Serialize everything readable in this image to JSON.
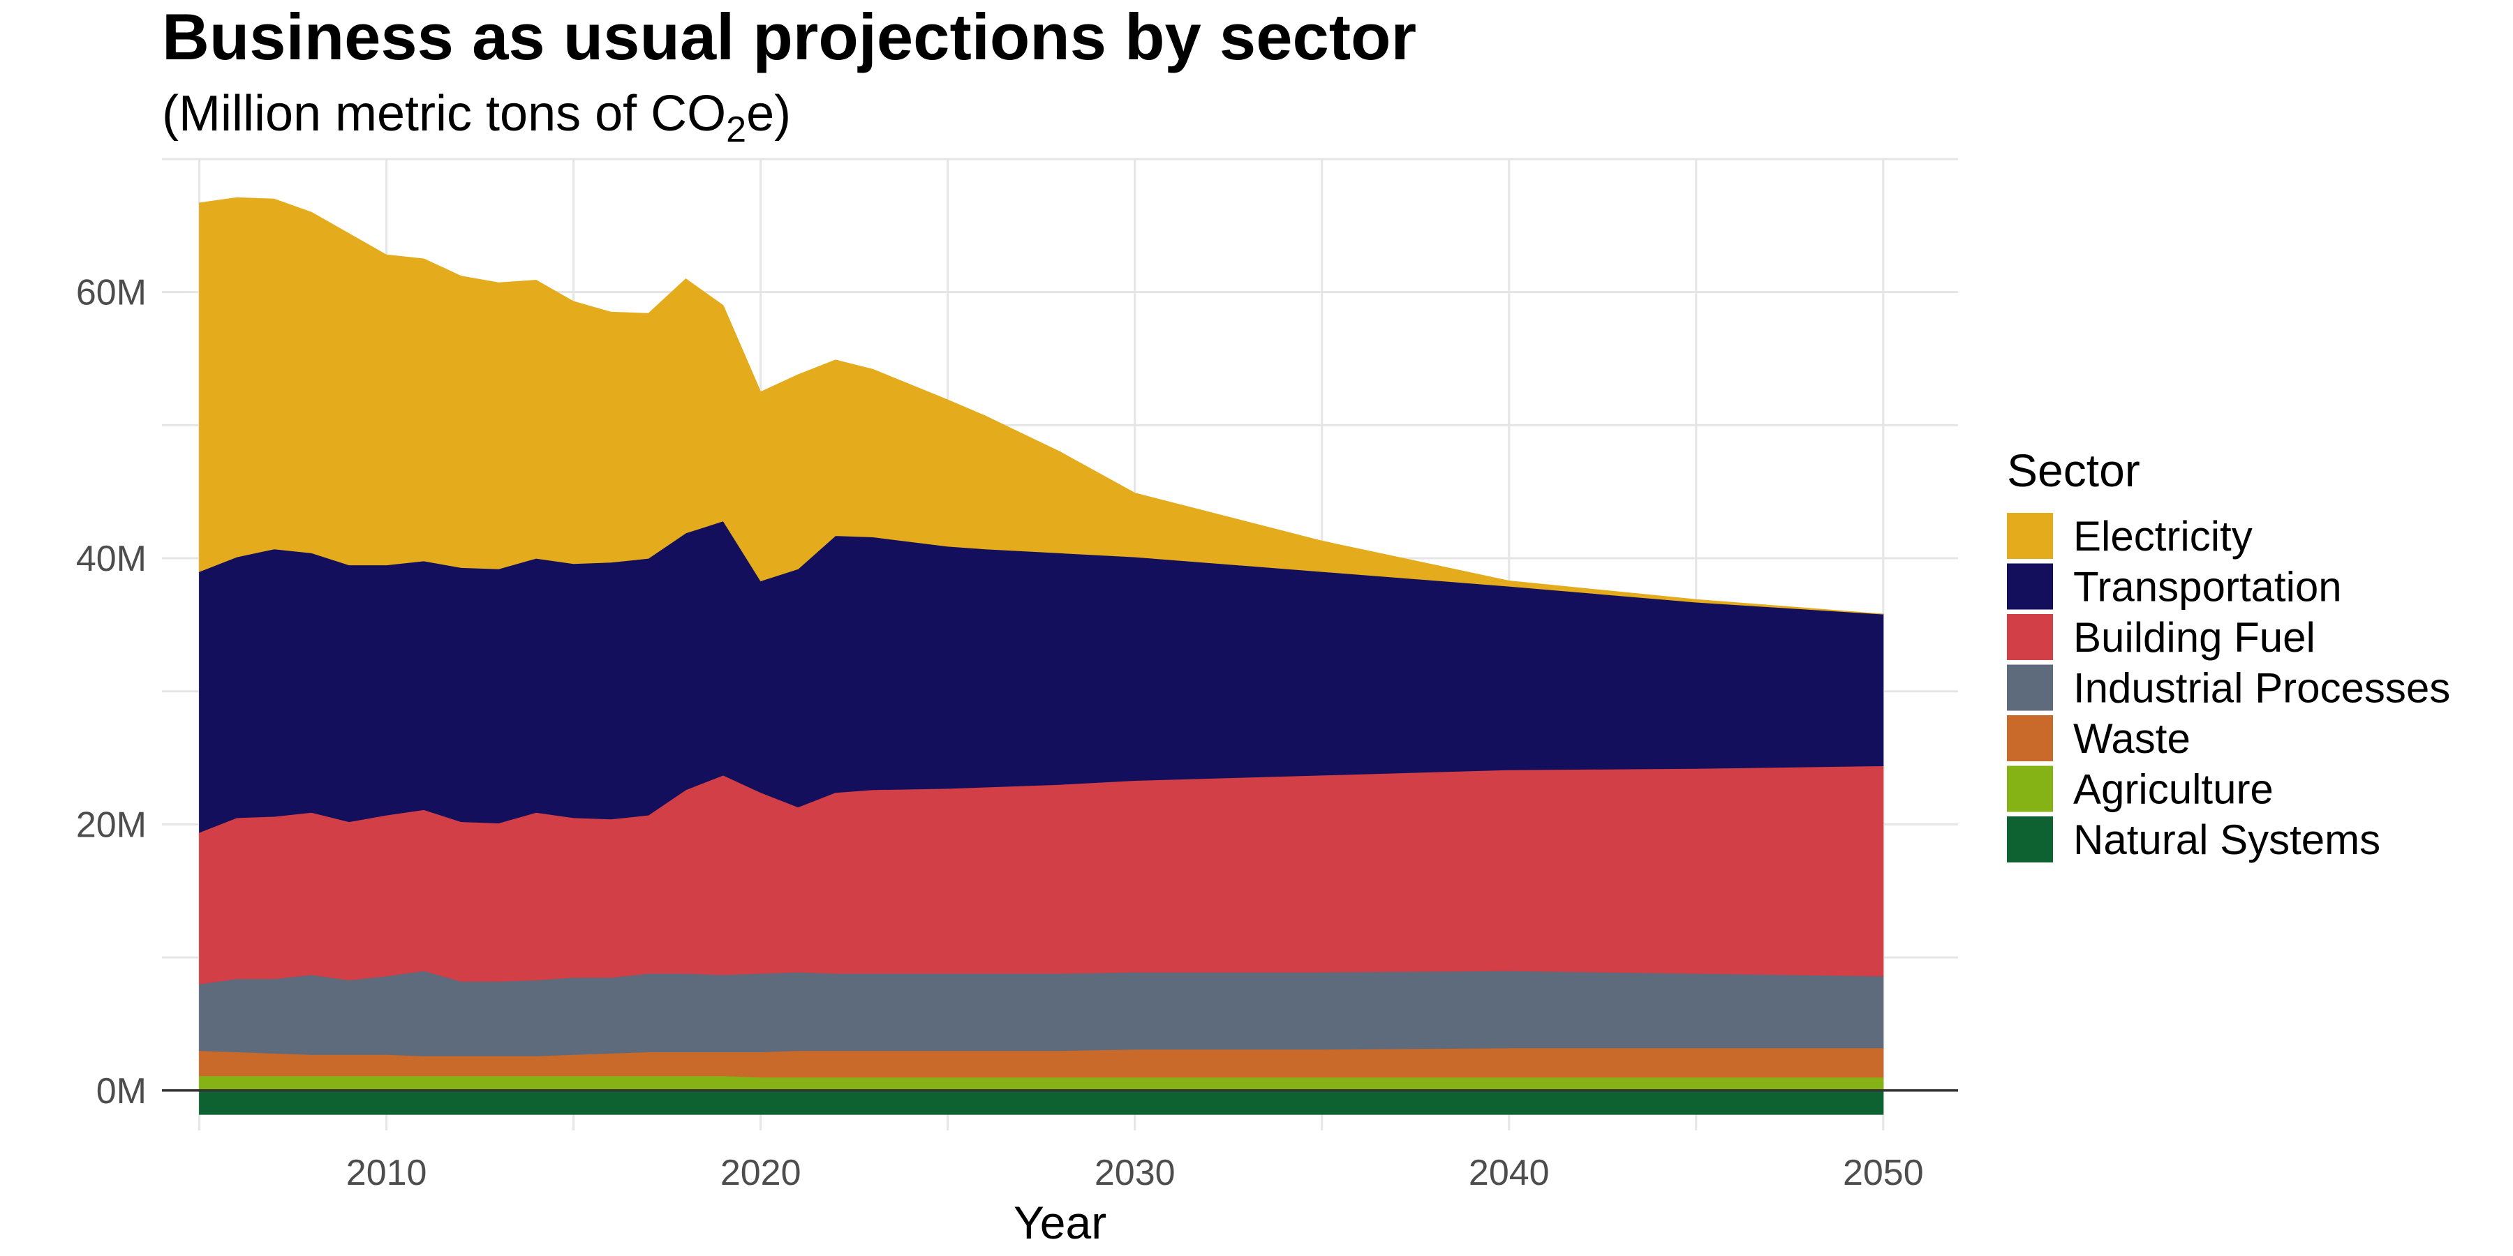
{
  "chart_data": {
    "type": "area",
    "stacked": true,
    "title": "Business as usual projections by sector",
    "subtitle": {
      "prefix": "(Million metric tons of CO",
      "subscript": "2",
      "suffix": "e)"
    },
    "xlabel": "Year",
    "ylabel": "",
    "xlim": [
      2004,
      2052
    ],
    "ylim": [
      -3000000,
      70000000
    ],
    "x_ticks": [
      {
        "value": 2010,
        "label": "2010"
      },
      {
        "value": 2020,
        "label": "2020"
      },
      {
        "value": 2030,
        "label": "2030"
      },
      {
        "value": 2040,
        "label": "2040"
      },
      {
        "value": 2050,
        "label": "2050"
      }
    ],
    "y_ticks": [
      {
        "value": 0,
        "label": "0M"
      },
      {
        "value": 20000000,
        "label": "20M"
      },
      {
        "value": 40000000,
        "label": "40M"
      },
      {
        "value": 60000000,
        "label": "60M"
      }
    ],
    "grid": true,
    "zero_line": true,
    "legend": {
      "title": "Sector",
      "position": "right"
    },
    "x": [
      2005,
      2006,
      2007,
      2008,
      2009,
      2010,
      2011,
      2012,
      2013,
      2014,
      2015,
      2016,
      2017,
      2018,
      2019,
      2020,
      2021,
      2022,
      2023,
      2025,
      2026,
      2028,
      2030,
      2035,
      2040,
      2045,
      2050
    ],
    "series": [
      {
        "name": "Natural Systems",
        "color": "#0e6232",
        "values": [
          -1800000,
          -1800000,
          -1800000,
          -1800000,
          -1800000,
          -1800000,
          -1800000,
          -1800000,
          -1800000,
          -1800000,
          -1800000,
          -1800000,
          -1800000,
          -1800000,
          -1800000,
          -1800000,
          -1800000,
          -1800000,
          -1800000,
          -1800000,
          -1800000,
          -1800000,
          -1800000,
          -1800000,
          -1800000,
          -1800000,
          -1800000
        ]
      },
      {
        "name": "Agriculture",
        "color": "#85b215",
        "values": [
          1100000,
          1100000,
          1100000,
          1100000,
          1100000,
          1100000,
          1100000,
          1100000,
          1100000,
          1100000,
          1100000,
          1100000,
          1100000,
          1100000,
          1100000,
          1000000,
          1000000,
          1000000,
          1000000,
          1000000,
          1000000,
          1000000,
          1000000,
          1000000,
          1000000,
          1000000,
          1000000
        ]
      },
      {
        "name": "Waste",
        "color": "#c9692a",
        "values": [
          1900000,
          1800000,
          1700000,
          1600000,
          1600000,
          1600000,
          1500000,
          1500000,
          1500000,
          1500000,
          1600000,
          1700000,
          1800000,
          1800000,
          1800000,
          1900000,
          2000000,
          2000000,
          2000000,
          2000000,
          2000000,
          2000000,
          2100000,
          2100000,
          2200000,
          2200000,
          2200000
        ]
      },
      {
        "name": "Industrial Processes",
        "color": "#5e6b7c",
        "values": [
          5000000,
          5500000,
          5600000,
          6000000,
          5600000,
          5900000,
          6400000,
          5600000,
          5600000,
          5700000,
          5800000,
          5700000,
          5900000,
          5900000,
          5800000,
          5900000,
          5900000,
          5800000,
          5800000,
          5800000,
          5800000,
          5800000,
          5800000,
          5800000,
          5800000,
          5600000,
          5400000
        ]
      },
      {
        "name": "Building Fuel",
        "color": "#d23f47",
        "values": [
          11400000,
          12100000,
          12200000,
          12200000,
          11900000,
          12100000,
          12100000,
          12000000,
          11900000,
          12600000,
          12000000,
          11900000,
          11900000,
          13800000,
          15000000,
          13600000,
          12400000,
          13600000,
          13800000,
          13900000,
          14000000,
          14200000,
          14400000,
          14800000,
          15100000,
          15400000,
          15800000
        ]
      },
      {
        "name": "Transportation",
        "color": "#140f5c",
        "values": [
          19600000,
          19600000,
          20100000,
          19500000,
          19300000,
          18800000,
          18700000,
          19100000,
          19100000,
          19100000,
          19100000,
          19300000,
          19300000,
          19300000,
          19100000,
          15900000,
          17900000,
          19300000,
          19000000,
          18200000,
          17900000,
          17400000,
          16800000,
          15300000,
          13800000,
          12500000,
          11400000
        ]
      },
      {
        "name": "Electricity",
        "color": "#e4ab1c",
        "values": [
          27700000,
          27000000,
          26300000,
          25600000,
          24900000,
          23300000,
          22700000,
          21900000,
          21500000,
          20900000,
          19700000,
          18800000,
          18400000,
          19100000,
          16200000,
          14200000,
          14600000,
          13200000,
          12600000,
          11000000,
          10000000,
          7600000,
          4800000,
          2300000,
          400000,
          200000,
          0
        ]
      }
    ]
  }
}
